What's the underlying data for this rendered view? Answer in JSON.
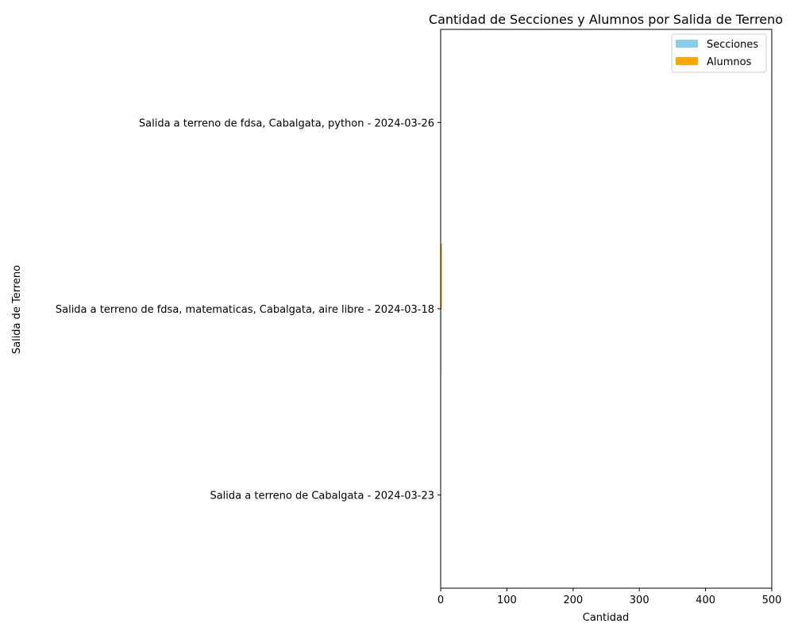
{
  "chart_data": {
    "type": "bar",
    "orientation": "horizontal",
    "title": "Cantidad de Secciones y Alumnos por Salida de Terreno",
    "xlabel": "Cantidad",
    "ylabel": "Salida de Terreno",
    "xlim": [
      0,
      500
    ],
    "xticks": [
      "0",
      "100",
      "200",
      "300",
      "400",
      "500"
    ],
    "grid": false,
    "legend_position": "top-right",
    "categories": [
      "Salida a terreno de fdsa, Cabalgata, python - 2024-03-26",
      "Salida a terreno de fdsa, matematicas, Cabalgata, aire libre - 2024-03-18",
      "Salida a terreno de Cabalgata - 2024-03-23"
    ],
    "series": [
      {
        "name": "Secciones",
        "color": "#87CEEB",
        "values": [
          0,
          1,
          0
        ]
      },
      {
        "name": "Alumnos",
        "color": "#FFA500",
        "values": [
          0,
          2,
          0
        ]
      }
    ]
  }
}
